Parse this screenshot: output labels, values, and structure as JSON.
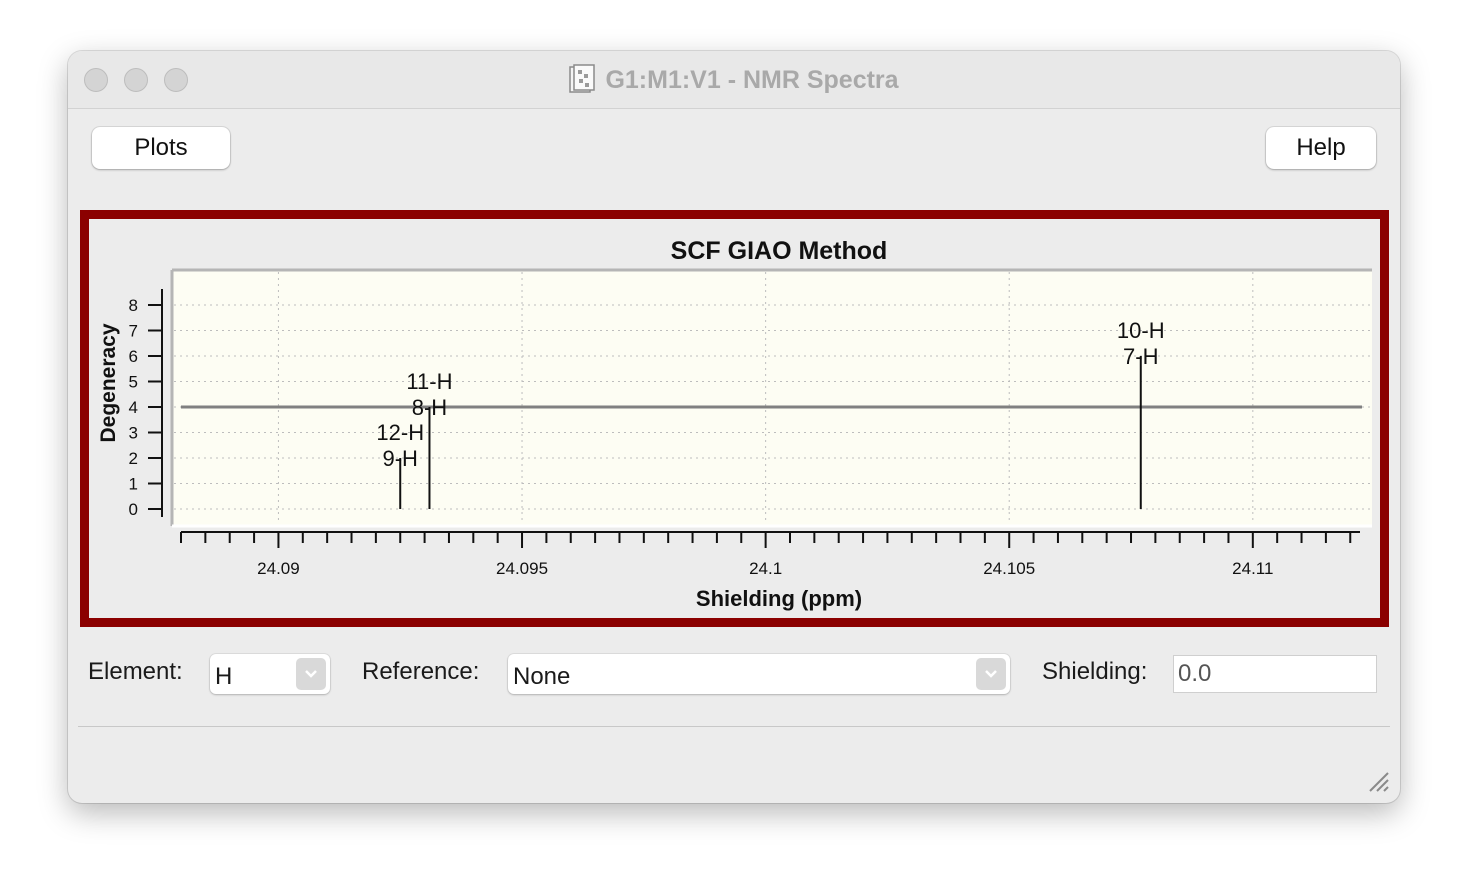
{
  "window": {
    "title": "G1:M1:V1 - NMR Spectra"
  },
  "toolbar": {
    "plots_label": "Plots",
    "help_label": "Help"
  },
  "chart_data": {
    "type": "stem",
    "title": "SCF GIAO Method",
    "xlabel": "Shielding (ppm)",
    "ylabel": "Degeneracy",
    "xlim": [
      24.088,
      24.1122
    ],
    "ylim": [
      0,
      8
    ],
    "x_ticks": [
      24.09,
      24.095,
      24.1,
      24.105,
      24.11
    ],
    "x_tick_labels": [
      "24.09",
      "24.095",
      "24.1",
      "24.105",
      "24.11"
    ],
    "y_ticks": [
      0,
      1,
      2,
      3,
      4,
      5,
      6,
      7,
      8
    ],
    "y_tick_labels": [
      "0",
      "1",
      "2",
      "3",
      "4",
      "5",
      "6",
      "7",
      "8"
    ],
    "grid": true,
    "reference_line_y": 4,
    "peaks": [
      {
        "x": 24.0925,
        "y": 2,
        "labels": [
          "9-H",
          "12-H"
        ]
      },
      {
        "x": 24.0931,
        "y": 4,
        "labels": [
          "8-H",
          "11-H"
        ]
      },
      {
        "x": 24.1077,
        "y": 6,
        "labels": [
          "7-H",
          "10-H"
        ]
      }
    ],
    "colors": {
      "plot_bg": "#fdfdf3",
      "frame": "#8b0000",
      "stem": "#111111",
      "ref_line": "#808080"
    }
  },
  "controls": {
    "element_label": "Element:",
    "element_value": "H",
    "reference_label": "Reference:",
    "reference_value": "None",
    "shielding_label": "Shielding:",
    "shielding_value": "0.0"
  }
}
